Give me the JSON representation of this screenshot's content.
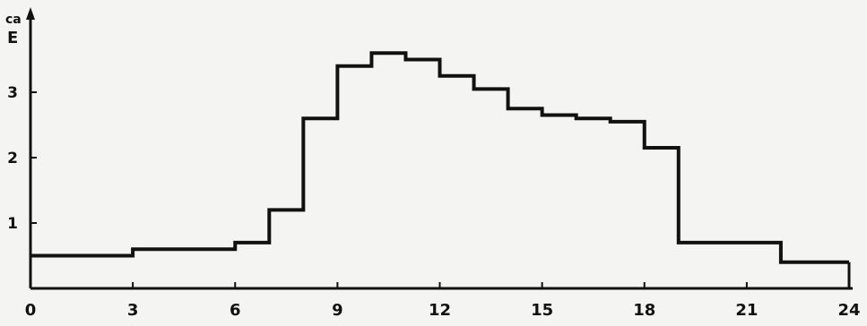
{
  "chart_data": {
    "type": "line",
    "step": "post",
    "title": "",
    "xlabel": "",
    "ylabel": "E",
    "unit_label": "са",
    "xlim": [
      0,
      24
    ],
    "ylim": [
      0,
      4
    ],
    "x_ticks": [
      {
        "value": 0,
        "label": "0"
      },
      {
        "value": 3,
        "label": "3"
      },
      {
        "value": 6,
        "label": "6"
      },
      {
        "value": 9,
        "label": "9"
      },
      {
        "value": 12,
        "label": "12"
      },
      {
        "value": 15,
        "label": "15"
      },
      {
        "value": 18,
        "label": "18"
      },
      {
        "value": 21,
        "label": "21"
      },
      {
        "value": 24,
        "label": "24"
      }
    ],
    "y_ticks": [
      {
        "value": 1,
        "label": "1"
      },
      {
        "value": 2,
        "label": "2"
      },
      {
        "value": 3,
        "label": "3"
      }
    ],
    "grid": false,
    "series": [
      {
        "x": [
          0,
          3,
          6,
          7,
          8,
          9,
          10,
          11,
          12,
          13,
          14,
          15,
          16,
          17,
          18,
          19,
          20,
          21,
          22,
          23,
          24
        ],
        "y": [
          0.5,
          0.6,
          0.7,
          1.2,
          2.6,
          3.4,
          3.6,
          3.5,
          3.25,
          3.05,
          2.75,
          2.65,
          2.6,
          2.55,
          2.15,
          0.7,
          0.7,
          0.7,
          0.4,
          0.4,
          0.4
        ]
      }
    ],
    "colors": {
      "line": "#111111",
      "axis": "#111111",
      "background": "#f4f4f2"
    }
  }
}
